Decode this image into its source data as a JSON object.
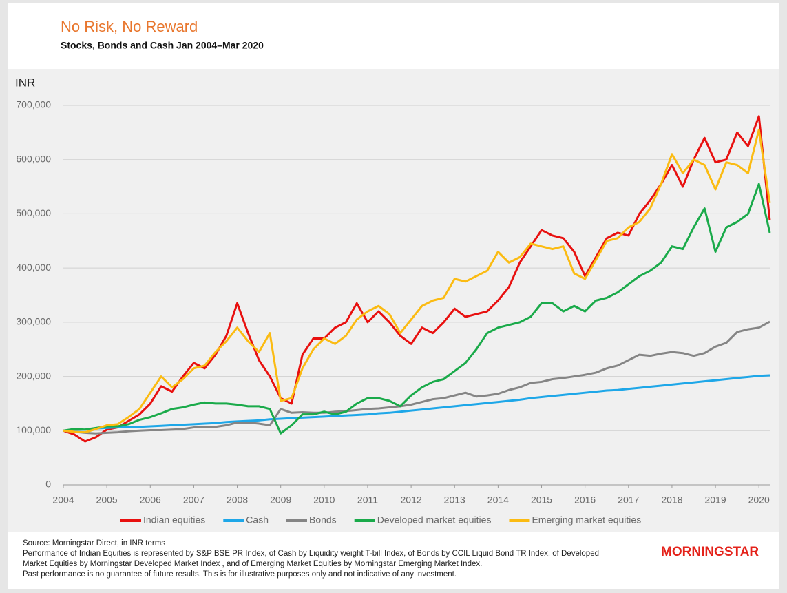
{
  "chart_data": {
    "type": "line",
    "title": "No Risk, No Reward",
    "subtitle": "Stocks, Bonds and Cash Jan 2004–Mar 2020",
    "y_label": "INR",
    "xlim": [
      2004,
      2020.25
    ],
    "xticks": [
      2004,
      2005,
      2006,
      2007,
      2008,
      2009,
      2010,
      2011,
      2012,
      2013,
      2014,
      2015,
      2016,
      2017,
      2018,
      2019,
      2020
    ],
    "ylim": [
      0,
      700000
    ],
    "yticks": [
      0,
      {
        "value": 100000,
        "label": "100,000"
      },
      {
        "value": 200000,
        "label": "200,000"
      },
      {
        "value": 300000,
        "label": "300,000"
      },
      {
        "value": 400000,
        "label": "400,000"
      },
      {
        "value": 500000,
        "label": "500,000"
      },
      {
        "value": 600000,
        "label": "600,000"
      },
      {
        "value": 700000,
        "label": "700,000"
      }
    ],
    "grid": true,
    "x": [
      2004,
      2004.25,
      2004.5,
      2004.75,
      2005,
      2005.25,
      2005.5,
      2005.75,
      2006,
      2006.25,
      2006.5,
      2006.75,
      2007,
      2007.25,
      2007.5,
      2007.75,
      2008,
      2008.25,
      2008.5,
      2008.75,
      2009,
      2009.25,
      2009.5,
      2009.75,
      2010,
      2010.25,
      2010.5,
      2010.75,
      2011,
      2011.25,
      2011.5,
      2011.75,
      2012,
      2012.25,
      2012.5,
      2012.75,
      2013,
      2013.25,
      2013.5,
      2013.75,
      2014,
      2014.25,
      2014.5,
      2014.75,
      2015,
      2015.25,
      2015.5,
      2015.75,
      2016,
      2016.25,
      2016.5,
      2016.75,
      2017,
      2017.25,
      2017.5,
      2017.75,
      2018,
      2018.25,
      2018.5,
      2018.75,
      2019,
      2019.25,
      2019.5,
      2019.75,
      2020,
      2020.25
    ],
    "series": [
      {
        "name": "Indian equities",
        "color": "#e8100f",
        "values": [
          100000,
          93000,
          80000,
          88000,
          102000,
          106000,
          118000,
          130000,
          150000,
          182000,
          172000,
          200000,
          225000,
          215000,
          240000,
          275000,
          335000,
          280000,
          230000,
          200000,
          160000,
          150000,
          240000,
          270000,
          270000,
          290000,
          300000,
          335000,
          300000,
          320000,
          300000,
          275000,
          260000,
          290000,
          280000,
          300000,
          325000,
          310000,
          315000,
          320000,
          340000,
          365000,
          410000,
          440000,
          470000,
          460000,
          455000,
          430000,
          385000,
          420000,
          455000,
          465000,
          460000,
          500000,
          525000,
          555000,
          590000,
          550000,
          600000,
          640000,
          595000,
          600000,
          650000,
          625000,
          680000,
          488000
        ]
      },
      {
        "name": "Cash",
        "color": "#1ea7e8",
        "values": [
          100000,
          101000,
          102000,
          104000,
          105000,
          106000,
          107000,
          107000,
          108000,
          109000,
          110000,
          111000,
          112000,
          113000,
          114000,
          116000,
          117000,
          118000,
          119000,
          121000,
          122000,
          123000,
          124000,
          125000,
          126000,
          127000,
          128000,
          129000,
          130000,
          132000,
          133000,
          135000,
          137000,
          139000,
          141000,
          143000,
          145000,
          147000,
          149000,
          151000,
          153000,
          155000,
          157000,
          160000,
          162000,
          164000,
          166000,
          168000,
          170000,
          172000,
          174000,
          175000,
          177000,
          179000,
          181000,
          183000,
          185000,
          187000,
          189000,
          191000,
          193000,
          195000,
          197000,
          199000,
          201000,
          202000
        ]
      },
      {
        "name": "Bonds",
        "color": "#858585",
        "values": [
          100000,
          98000,
          96000,
          95000,
          96000,
          97000,
          99000,
          100000,
          101000,
          101000,
          102000,
          103000,
          106000,
          106000,
          107000,
          110000,
          115000,
          115000,
          113000,
          110000,
          140000,
          133000,
          134000,
          133000,
          133000,
          135000,
          136000,
          138000,
          140000,
          141000,
          143000,
          145000,
          148000,
          153000,
          158000,
          160000,
          165000,
          170000,
          163000,
          165000,
          168000,
          175000,
          180000,
          188000,
          190000,
          195000,
          197000,
          200000,
          203000,
          207000,
          215000,
          220000,
          230000,
          240000,
          238000,
          242000,
          245000,
          243000,
          238000,
          243000,
          255000,
          262000,
          282000,
          287000,
          290000,
          301000
        ]
      },
      {
        "name": "Developed market equities",
        "color": "#1aaa4a",
        "values": [
          100000,
          103000,
          102000,
          105000,
          108000,
          108000,
          112000,
          120000,
          125000,
          132000,
          140000,
          143000,
          148000,
          152000,
          150000,
          150000,
          148000,
          145000,
          145000,
          140000,
          95000,
          110000,
          130000,
          130000,
          135000,
          130000,
          135000,
          150000,
          160000,
          160000,
          155000,
          145000,
          165000,
          180000,
          190000,
          195000,
          210000,
          225000,
          250000,
          280000,
          290000,
          295000,
          300000,
          310000,
          335000,
          335000,
          320000,
          330000,
          320000,
          340000,
          345000,
          355000,
          370000,
          385000,
          395000,
          410000,
          440000,
          435000,
          475000,
          510000,
          430000,
          475000,
          485000,
          500000,
          555000,
          465000
        ]
      },
      {
        "name": "Emerging market equities",
        "color": "#fbbb12",
        "values": [
          100000,
          98000,
          97000,
          103000,
          110000,
          112000,
          125000,
          140000,
          170000,
          200000,
          180000,
          195000,
          215000,
          220000,
          245000,
          265000,
          290000,
          265000,
          245000,
          280000,
          155000,
          160000,
          215000,
          250000,
          270000,
          260000,
          275000,
          305000,
          320000,
          330000,
          315000,
          280000,
          305000,
          330000,
          340000,
          345000,
          380000,
          375000,
          385000,
          395000,
          430000,
          410000,
          420000,
          445000,
          440000,
          435000,
          440000,
          390000,
          380000,
          415000,
          450000,
          455000,
          475000,
          485000,
          510000,
          555000,
          610000,
          575000,
          600000,
          590000,
          545000,
          595000,
          590000,
          575000,
          655000,
          520000
        ]
      }
    ]
  },
  "footer": {
    "source": "Source: Morningstar Direct, in INR terms",
    "notes": [
      "Performance of Indian Equities is represented by S&P BSE PR Index, of Cash by Liquidity weight T-bill Index, of Bonds by CCIL Liquid Bond TR Index, of Developed",
      "Market Equities by Morningstar Developed Market Index , and of Emerging Market Equities by Morningstar Emerging Market Index.",
      "Past performance is no guarantee of future results. This is for illustrative purposes only and not indicative of any investment."
    ],
    "logo": "MORNINGSTAR"
  }
}
